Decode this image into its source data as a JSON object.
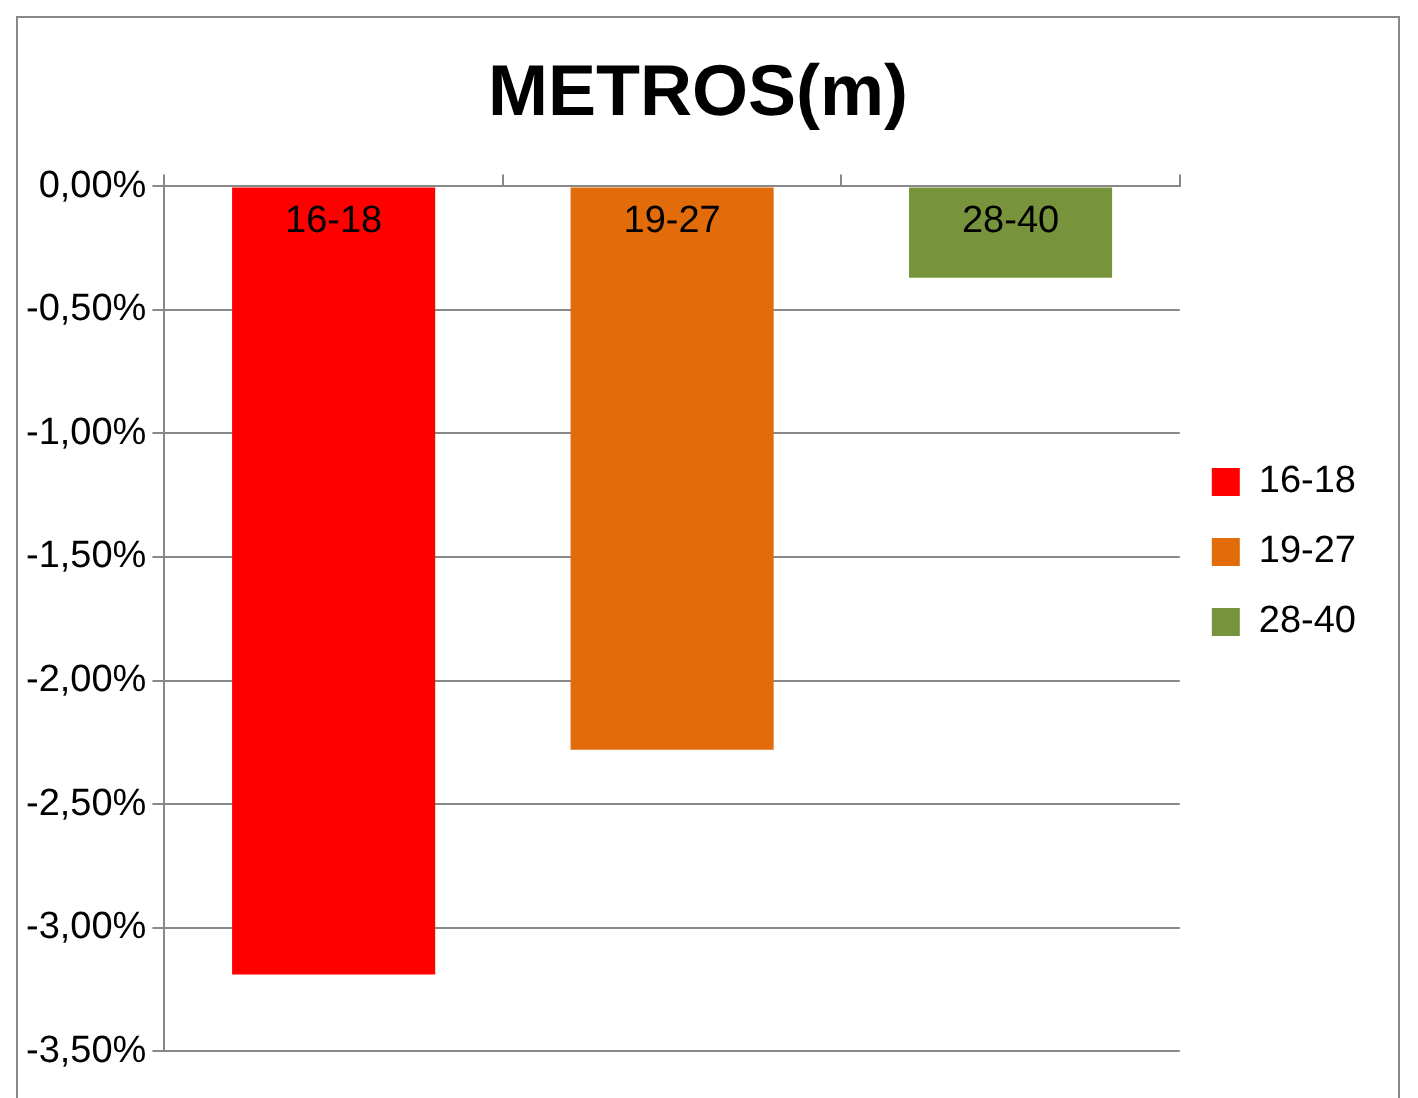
{
  "chart_data": {
    "type": "bar",
    "title": "METROS(m)",
    "categories": [
      "16-18",
      "19-27",
      "28-40"
    ],
    "series": [
      {
        "name": "16-18",
        "color": "#ff0000",
        "values": [
          -3.19,
          null,
          null
        ]
      },
      {
        "name": "19-27",
        "color": "#e36c0a",
        "values": [
          null,
          -2.28,
          null
        ]
      },
      {
        "name": "28-40",
        "color": "#77933c",
        "values": [
          null,
          null,
          -0.37
        ]
      }
    ],
    "ylim": [
      -3.5,
      0
    ],
    "yticks": [
      {
        "value": 0,
        "label": "0,00%"
      },
      {
        "value": -0.5,
        "label": "-0,50%"
      },
      {
        "value": -1,
        "label": "-1,00%"
      },
      {
        "value": -1.5,
        "label": "-1,50%"
      },
      {
        "value": -2,
        "label": "-2,00%"
      },
      {
        "value": -2.5,
        "label": "-2,50%"
      },
      {
        "value": -3,
        "label": "-3,00%"
      },
      {
        "value": -3.5,
        "label": "-3,50%"
      }
    ],
    "grid": "y",
    "legend": "right"
  }
}
